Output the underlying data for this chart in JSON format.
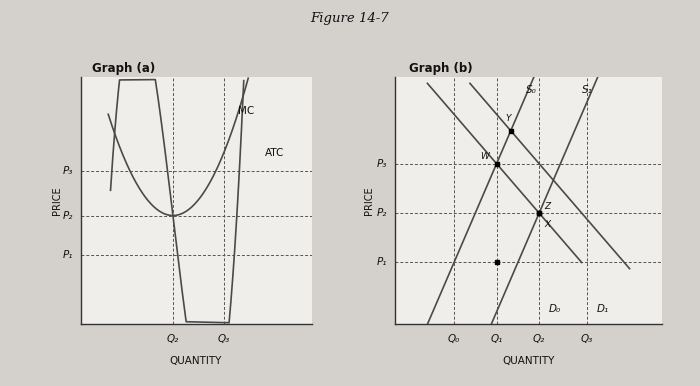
{
  "fig_title": "Figure 14-7",
  "graph_a_title": "Graph (a)",
  "graph_b_title": "Graph (b)",
  "bg_color": "#d4d0cc",
  "plot_bg": "#f0eeeb",
  "line_color": "#4a4a4a",
  "dashed_color": "#555555",
  "graph_a": {
    "price_labels": [
      "P₁",
      "P₂",
      "P₃"
    ],
    "price_vals": [
      0.28,
      0.44,
      0.62
    ],
    "qty_labels": [
      "Q₂",
      "Q₃"
    ],
    "qty_vals": [
      0.4,
      0.62
    ],
    "xlabel": "QUANTITY",
    "ylabel": "PRICE",
    "mc_label": "MC",
    "atc_label": "ATC",
    "atc_min_q": 0.4,
    "atc_min_p": 0.44
  },
  "graph_b": {
    "price_labels": [
      "P₁",
      "P₂",
      "P₃"
    ],
    "price_vals": [
      0.25,
      0.45,
      0.65
    ],
    "qty_labels": [
      "Q₀",
      "Q₁",
      "Q₂",
      "Q₃"
    ],
    "qty_vals": [
      0.22,
      0.38,
      0.54,
      0.72
    ],
    "s0_label": "S₀",
    "s1_label": "S₁",
    "d0_label": "D₀",
    "d1_label": "D₁",
    "xlabel": "QUANTITY",
    "ylabel": "PRICE"
  }
}
